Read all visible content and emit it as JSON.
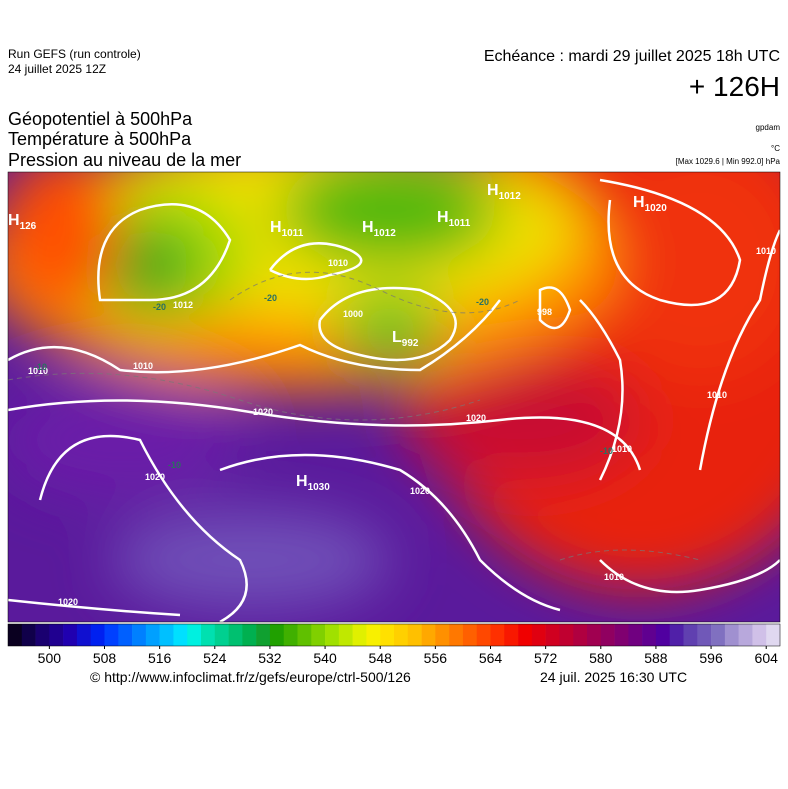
{
  "header": {
    "run": "Run GEFS (run controle)",
    "run_date": "24 juillet 2025 12Z",
    "valid": "Echéance : mardi 29 juillet 2025 18h UTC",
    "lead": "+ 126H"
  },
  "fields": [
    "Géopotentiel à 500hPa",
    "Température à 500hPa",
    "Pression au niveau de la mer"
  ],
  "units": [
    "gpdam",
    "°C",
    "[Max 1029.6 | Min 992.0] hPa"
  ],
  "map_labels": {
    "centers": [
      {
        "symbol": "H",
        "value": "126"
      },
      {
        "symbol": "H",
        "value": "1011"
      },
      {
        "symbol": "H",
        "value": "1012"
      },
      {
        "symbol": "H",
        "value": "1011"
      },
      {
        "symbol": "H",
        "value": "1012"
      },
      {
        "symbol": "H",
        "value": "1020"
      },
      {
        "symbol": "H",
        "value": "1030"
      },
      {
        "symbol": "L",
        "value": "992"
      }
    ],
    "isobars": [
      "1010",
      "1010",
      "1010",
      "1020",
      "1020",
      "1020",
      "1020",
      "1020",
      "1010",
      "1010",
      "1010",
      "1010",
      "1000",
      "998",
      "1012"
    ],
    "isotherms": [
      "-20",
      "-20",
      "-20",
      "-10",
      "-10",
      "-10"
    ]
  },
  "colorbar": {
    "xlim": [
      494,
      606
    ],
    "ticks": [
      500,
      508,
      516,
      524,
      532,
      540,
      548,
      556,
      564,
      572,
      580,
      588,
      596,
      604
    ],
    "colors": [
      "#0a0020",
      "#10004a",
      "#1a0070",
      "#200090",
      "#2000b0",
      "#1010d0",
      "#0020f0",
      "#0040ff",
      "#0060ff",
      "#0080ff",
      "#00a0ff",
      "#00c0ff",
      "#00e0ff",
      "#00f0e0",
      "#00e0b0",
      "#00d090",
      "#00c070",
      "#00b050",
      "#10a030",
      "#20a000",
      "#40b000",
      "#60c000",
      "#80d000",
      "#a0e000",
      "#c0e800",
      "#e0f000",
      "#f8f000",
      "#ffe000",
      "#ffd000",
      "#ffc000",
      "#ffa800",
      "#ff9000",
      "#ff7800",
      "#ff6000",
      "#ff4800",
      "#ff3000",
      "#f81800",
      "#f00000",
      "#e00010",
      "#d00020",
      "#c00030",
      "#b00040",
      "#a00050",
      "#900060",
      "#800070",
      "#700080",
      "#600090",
      "#5000a0",
      "#5020a8",
      "#6040b0",
      "#7058b8",
      "#8070c0",
      "#a090d0",
      "#b8a8dc",
      "#d0c0e8",
      "#e0d8f0"
    ]
  },
  "footer": {
    "url": "© http://www.infoclimat.fr/z/gefs/europe/ctrl-500/126",
    "issued": "24 juil. 2025 16:30 UTC"
  }
}
